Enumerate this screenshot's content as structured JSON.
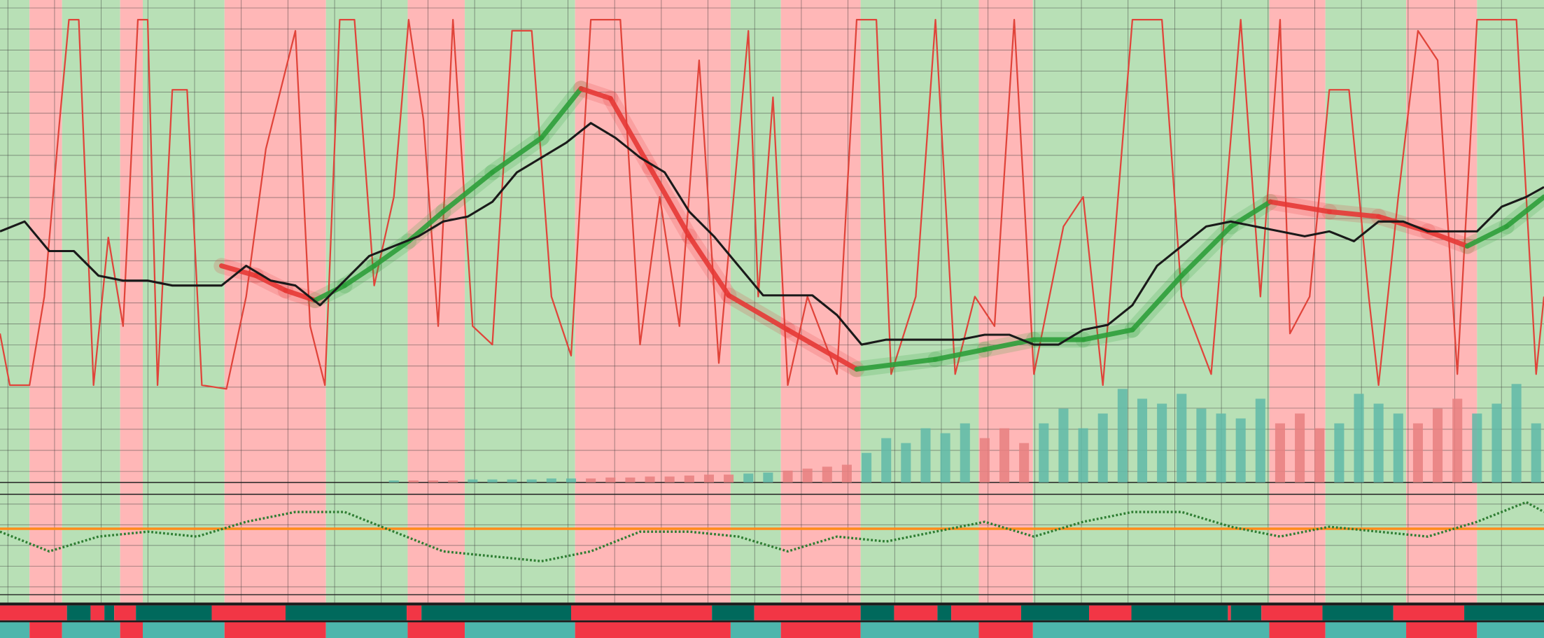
{
  "chart_data": {
    "type": "line",
    "xlim": [
      0,
      1568
    ],
    "regimes": {
      "edges": [
        0,
        30,
        63,
        122,
        145,
        228,
        331,
        414,
        472,
        584,
        742,
        793,
        874,
        994,
        1049,
        1289,
        1346,
        1428,
        1500,
        1568
      ],
      "colors": [
        "#b8e0b6",
        "#ffb7b7",
        "#b8e0b6",
        "#ffb7b7",
        "#b8e0b6",
        "#ffb7b7",
        "#b8e0b6",
        "#ffb7b7",
        "#b8e0b6",
        "#ffb7b7",
        "#b8e0b6",
        "#ffb7b7",
        "#b8e0b6",
        "#ffb7b7",
        "#b8e0b6",
        "#ffb7b7",
        "#b8e0b6",
        "#ffb7b7",
        "#b8e0b6"
      ],
      "strip_colors": [
        "#4db6ac",
        "#f23645",
        "#4db6ac",
        "#f23645",
        "#4db6ac",
        "#f23645",
        "#4db6ac",
        "#f23645",
        "#4db6ac",
        "#f23645",
        "#4db6ac",
        "#f23645",
        "#4db6ac",
        "#f23645",
        "#4db6ac",
        "#f23645",
        "#4db6ac",
        "#f23645",
        "#4db6ac"
      ]
    },
    "signal": {
      "edges": [
        0,
        68,
        92,
        106,
        116,
        138,
        215,
        290,
        413,
        428,
        580,
        723,
        766,
        874,
        908,
        952,
        966,
        1037,
        1106,
        1149,
        1247,
        1250,
        1281,
        1343,
        1415,
        1487,
        1568
      ],
      "colors": [
        "#f23645",
        "#00695c",
        "#f23645",
        "#00695c",
        "#f23645",
        "#00695c",
        "#f23645",
        "#00695c",
        "#f23645",
        "#00695c",
        "#f23645",
        "#00695c",
        "#f23645",
        "#00695c",
        "#f23645",
        "#00695c",
        "#f23645",
        "#00695c",
        "#f23645",
        "#00695c",
        "#f23645",
        "#00695c",
        "#f23645",
        "#00695c",
        "#f23645",
        "#00695c"
      ]
    },
    "price": {
      "color": "#1a1a1a",
      "ylim": [
        0,
        490
      ],
      "x": [
        0,
        25,
        50,
        75,
        100,
        125,
        150,
        175,
        200,
        225,
        250,
        275,
        300,
        325,
        350,
        375,
        400,
        425,
        450,
        475,
        500,
        525,
        550,
        575,
        600,
        625,
        650,
        675,
        700,
        725,
        750,
        775,
        800,
        825,
        850,
        875,
        900,
        925,
        950,
        975,
        1000,
        1025,
        1050,
        1075,
        1100,
        1125,
        1150,
        1175,
        1200,
        1225,
        1250,
        1275,
        1300,
        1325,
        1350,
        1375,
        1400,
        1425,
        1450,
        1475,
        1500,
        1525,
        1550,
        1568
      ],
      "values": [
        255,
        265,
        235,
        235,
        210,
        205,
        205,
        200,
        200,
        200,
        220,
        205,
        200,
        180,
        205,
        230,
        240,
        250,
        265,
        270,
        285,
        315,
        330,
        345,
        365,
        350,
        330,
        315,
        275,
        250,
        220,
        190,
        190,
        190,
        170,
        140,
        145,
        145,
        145,
        145,
        150,
        150,
        140,
        140,
        155,
        160,
        180,
        220,
        240,
        260,
        265,
        260,
        255,
        250,
        255,
        245,
        265,
        265,
        255,
        255,
        255,
        280,
        290,
        300
      ]
    },
    "ma": {
      "ylim": [
        0,
        490
      ],
      "x": [
        225,
        260,
        290,
        320,
        350,
        380,
        415,
        450,
        500,
        550,
        590,
        620,
        660,
        700,
        740,
        800,
        870,
        950,
        1000,
        1050,
        1100,
        1150,
        1200,
        1250,
        1290,
        1350,
        1400,
        1450,
        1490,
        1530,
        1568
      ],
      "values": [
        220,
        210,
        195,
        185,
        200,
        220,
        245,
        275,
        315,
        350,
        400,
        390,
        320,
        250,
        190,
        155,
        115,
        125,
        135,
        145,
        145,
        155,
        210,
        260,
        285,
        275,
        270,
        255,
        240,
        260,
        290
      ],
      "colors": [
        "#e53935",
        "#e53935",
        "#e53935",
        "#2e9e3a",
        "#2e9e3a",
        "#2e9e3a",
        "#2e9e3a",
        "#2e9e3a",
        "#2e9e3a",
        "#2e9e3a",
        "#e53935",
        "#e53935",
        "#e53935",
        "#e53935",
        "#e53935",
        "#e53935",
        "#2e9e3a",
        "#2e9e3a",
        "#2e9e3a",
        "#2e9e3a",
        "#2e9e3a",
        "#2e9e3a",
        "#2e9e3a",
        "#2e9e3a",
        "#e53935",
        "#e53935",
        "#e53935",
        "#e53935",
        "#2e9e3a",
        "#2e9e3a",
        "#2e9e3a"
      ]
    },
    "oscillator": {
      "color": "#e0443a",
      "ylim": [
        0,
        100
      ],
      "x": [
        0,
        10,
        30,
        45,
        60,
        70,
        80,
        95,
        110,
        125,
        140,
        150,
        160,
        175,
        190,
        205,
        230,
        250,
        270,
        300,
        315,
        330,
        345,
        360,
        380,
        400,
        415,
        430,
        445,
        460,
        480,
        500,
        520,
        540,
        560,
        580,
        600,
        630,
        650,
        670,
        690,
        710,
        730,
        760,
        770,
        785,
        800,
        820,
        850,
        870,
        890,
        905,
        930,
        950,
        970,
        990,
        1010,
        1030,
        1050,
        1080,
        1100,
        1120,
        1150,
        1180,
        1200,
        1230,
        1260,
        1280,
        1300,
        1310,
        1330,
        1350,
        1370,
        1390,
        1400,
        1420,
        1440,
        1460,
        1480,
        1500,
        1520,
        1540,
        1560,
        1568
      ],
      "values": [
        15,
        1,
        1,
        25,
        71,
        100,
        100,
        1,
        41,
        17,
        100,
        100,
        1,
        81,
        81,
        1,
        0,
        25,
        65,
        97,
        17,
        1,
        100,
        100,
        28,
        52,
        100,
        73,
        17,
        100,
        17,
        12,
        97,
        97,
        25,
        9,
        100,
        100,
        12,
        52,
        17,
        89,
        7,
        97,
        25,
        79,
        1,
        25,
        4,
        100,
        100,
        4,
        25,
        100,
        4,
        25,
        17,
        100,
        4,
        44,
        52,
        1,
        100,
        100,
        25,
        4,
        100,
        25,
        100,
        15,
        25,
        81,
        81,
        25,
        1,
        52,
        97,
        89,
        4,
        100,
        100,
        100,
        4,
        25
      ]
    },
    "volume": {
      "ylim": [
        0,
        120
      ],
      "color_up": "#5fb8a8",
      "color_down": "#e88080",
      "x": [
        400,
        420,
        440,
        460,
        480,
        500,
        520,
        540,
        560,
        580,
        600,
        620,
        640,
        660,
        680,
        700,
        720,
        740,
        760,
        780,
        800,
        820,
        840,
        860,
        880,
        900,
        920,
        940,
        960,
        980,
        1000,
        1020,
        1040,
        1060,
        1080,
        1100,
        1120,
        1140,
        1160,
        1180,
        1200,
        1220,
        1240,
        1260,
        1280,
        1300,
        1320,
        1340,
        1360,
        1380,
        1400,
        1420,
        1440,
        1460,
        1480,
        1500,
        1520,
        1540,
        1560
      ],
      "values": [
        2,
        2,
        2,
        2,
        3,
        3,
        3,
        3,
        4,
        4,
        4,
        5,
        5,
        6,
        6,
        7,
        8,
        8,
        9,
        10,
        12,
        14,
        16,
        18,
        30,
        45,
        40,
        55,
        50,
        60,
        45,
        55,
        40,
        60,
        75,
        55,
        70,
        95,
        85,
        80,
        90,
        75,
        70,
        65,
        85,
        60,
        70,
        55,
        60,
        90,
        80,
        70,
        60,
        75,
        85,
        70,
        80,
        100,
        60
      ]
    },
    "lower": {
      "color": "#2e7d32",
      "zero_color": "#ff8c1a",
      "zero_line": 0,
      "ylim": [
        -65,
        35
      ],
      "x": [
        0,
        50,
        100,
        150,
        200,
        250,
        300,
        350,
        400,
        450,
        500,
        550,
        600,
        650,
        700,
        750,
        800,
        850,
        900,
        950,
        1000,
        1050,
        1100,
        1150,
        1200,
        1250,
        1300,
        1350,
        1400,
        1450,
        1500,
        1550,
        1568
      ],
      "values": [
        -3,
        -23,
        -8,
        -3,
        -8,
        7,
        17,
        17,
        -3,
        -23,
        -28,
        -33,
        -23,
        -3,
        -3,
        -8,
        -23,
        -8,
        -13,
        -3,
        7,
        -8,
        7,
        17,
        17,
        2,
        -8,
        2,
        -3,
        -8,
        7,
        27,
        17
      ]
    }
  }
}
